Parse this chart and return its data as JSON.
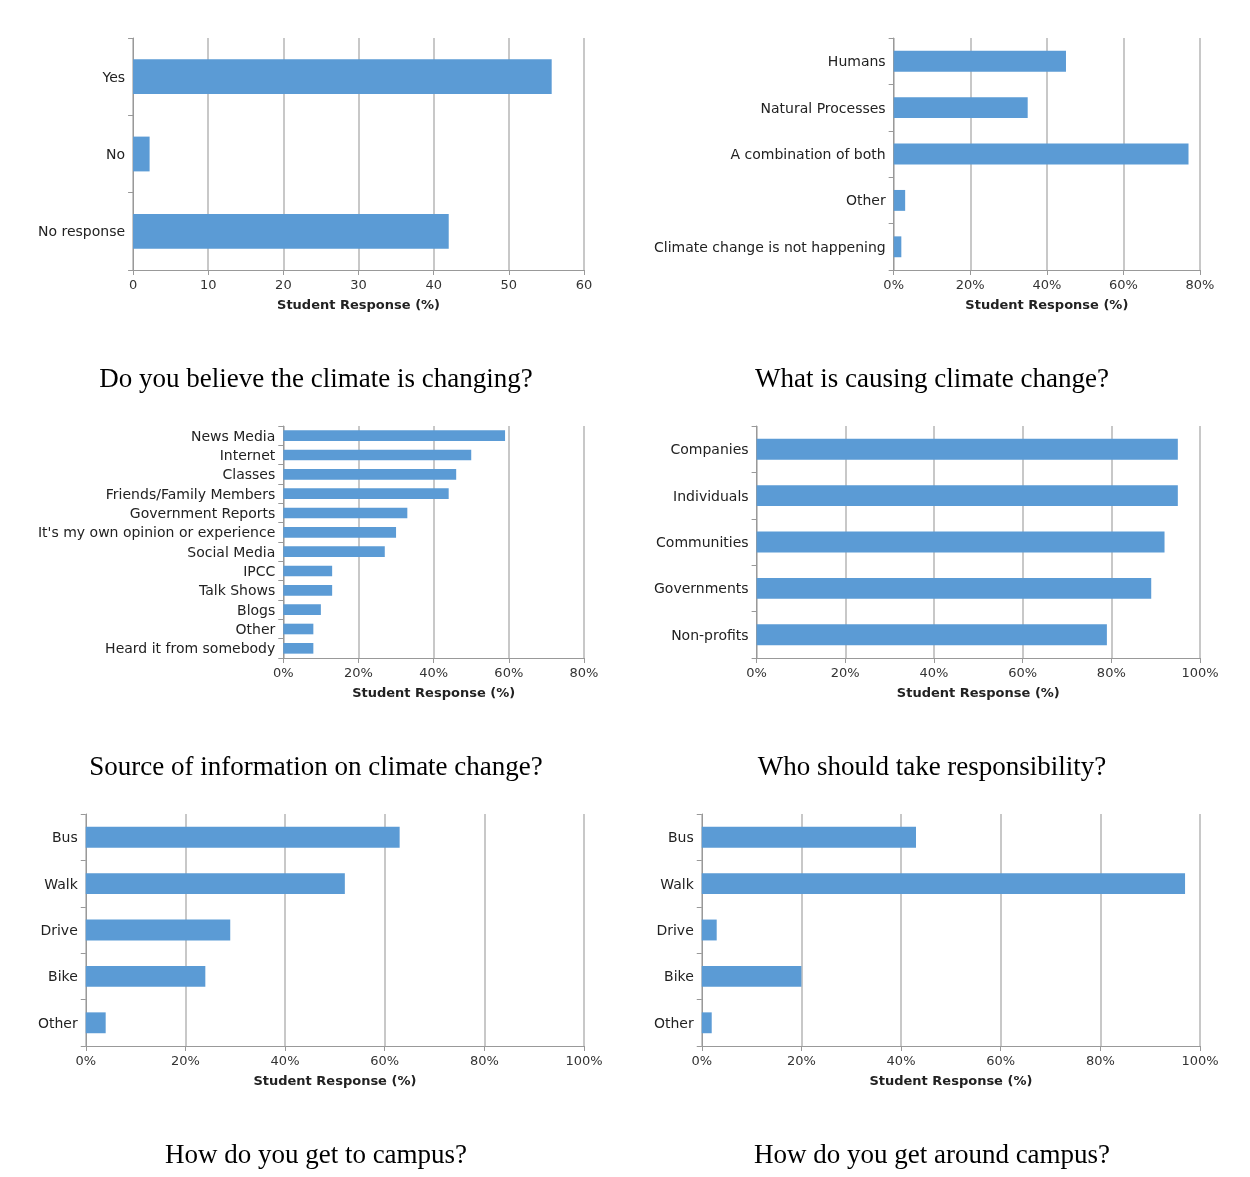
{
  "chart_data": [
    {
      "type": "bar",
      "orientation": "horizontal",
      "title": "Do you believe the climate is changing?",
      "xlabel": "Student Response (%)",
      "categories": [
        "Yes",
        "No",
        "No response"
      ],
      "values": [
        55.7,
        2.2,
        42
      ],
      "color": "#5b9bd5",
      "xlim": [
        0,
        60
      ],
      "xticks": [
        0,
        10,
        20,
        30,
        40,
        50,
        60
      ],
      "grid": "x"
    },
    {
      "type": "bar",
      "orientation": "horizontal",
      "title": "What is causing climate change?",
      "xlabel": "Student Response (%)",
      "categories": [
        "Humans",
        "Natural Processes",
        "A combination of both",
        "Other",
        "Climate change is not happening"
      ],
      "values": [
        45,
        35,
        77,
        3,
        2
      ],
      "color": "#5b9bd5",
      "xlim": [
        0,
        80
      ],
      "xticks": [
        {
          "value": 0,
          "label": "0%"
        },
        {
          "value": 20,
          "label": "20%"
        },
        {
          "value": 40,
          "label": "40%"
        },
        {
          "value": 60,
          "label": "60%"
        },
        {
          "value": 80,
          "label": "80%"
        }
      ],
      "grid": "x"
    },
    {
      "type": "bar",
      "orientation": "horizontal",
      "title": "Source of information on climate change?",
      "xlabel": "Student Response (%)",
      "categories": [
        "News Media",
        "Internet",
        "Classes",
        "Friends/Family Members",
        "Government Reports",
        "It's my own opinion or experience",
        "Social Media",
        "IPCC",
        "Talk Shows",
        "Blogs",
        "Other",
        "Heard it from somebody"
      ],
      "values": [
        59,
        50,
        46,
        44,
        33,
        30,
        27,
        13,
        13,
        10,
        8,
        8
      ],
      "color": "#5b9bd5",
      "xlim": [
        0,
        80
      ],
      "xticks": [
        {
          "value": 0,
          "label": "0%"
        },
        {
          "value": 20,
          "label": "20%"
        },
        {
          "value": 40,
          "label": "40%"
        },
        {
          "value": 60,
          "label": "60%"
        },
        {
          "value": 80,
          "label": "80%"
        }
      ],
      "grid": "x"
    },
    {
      "type": "bar",
      "orientation": "horizontal",
      "title": "Who should take responsibility?",
      "xlabel": "Student Response (%)",
      "categories": [
        "Companies",
        "Individuals",
        "Communities",
        "Governments",
        "Non-profits"
      ],
      "values": [
        95,
        95,
        92,
        89,
        79
      ],
      "color": "#5b9bd5",
      "xlim": [
        0,
        100
      ],
      "xticks": [
        {
          "value": 0,
          "label": "0%"
        },
        {
          "value": 20,
          "label": "20%"
        },
        {
          "value": 40,
          "label": "40%"
        },
        {
          "value": 60,
          "label": "60%"
        },
        {
          "value": 80,
          "label": "80%"
        },
        {
          "value": 100,
          "label": "100%"
        }
      ],
      "grid": "x"
    },
    {
      "type": "bar",
      "orientation": "horizontal",
      "title": "How do you get to campus?",
      "xlabel": "Student Response (%)",
      "categories": [
        "Bus",
        "Walk",
        "Drive",
        "Bike",
        "Other"
      ],
      "values": [
        63,
        52,
        29,
        24,
        4
      ],
      "color": "#5b9bd5",
      "xlim": [
        0,
        100
      ],
      "xticks": [
        {
          "value": 0,
          "label": "0%"
        },
        {
          "value": 20,
          "label": "20%"
        },
        {
          "value": 40,
          "label": "40%"
        },
        {
          "value": 60,
          "label": "60%"
        },
        {
          "value": 80,
          "label": "80%"
        },
        {
          "value": 100,
          "label": "100%"
        }
      ],
      "grid": "x"
    },
    {
      "type": "bar",
      "orientation": "horizontal",
      "title": "How do you get around campus?",
      "xlabel": "Student Response (%)",
      "categories": [
        "Bus",
        "Walk",
        "Drive",
        "Bike",
        "Other"
      ],
      "values": [
        43,
        97,
        3,
        20,
        2
      ],
      "color": "#5b9bd5",
      "xlim": [
        0,
        100
      ],
      "xticks": [
        {
          "value": 0,
          "label": "0%"
        },
        {
          "value": 20,
          "label": "20%"
        },
        {
          "value": 40,
          "label": "40%"
        },
        {
          "value": 60,
          "label": "60%"
        },
        {
          "value": 80,
          "label": "80%"
        },
        {
          "value": 100,
          "label": "100%"
        }
      ],
      "grid": "x"
    }
  ]
}
